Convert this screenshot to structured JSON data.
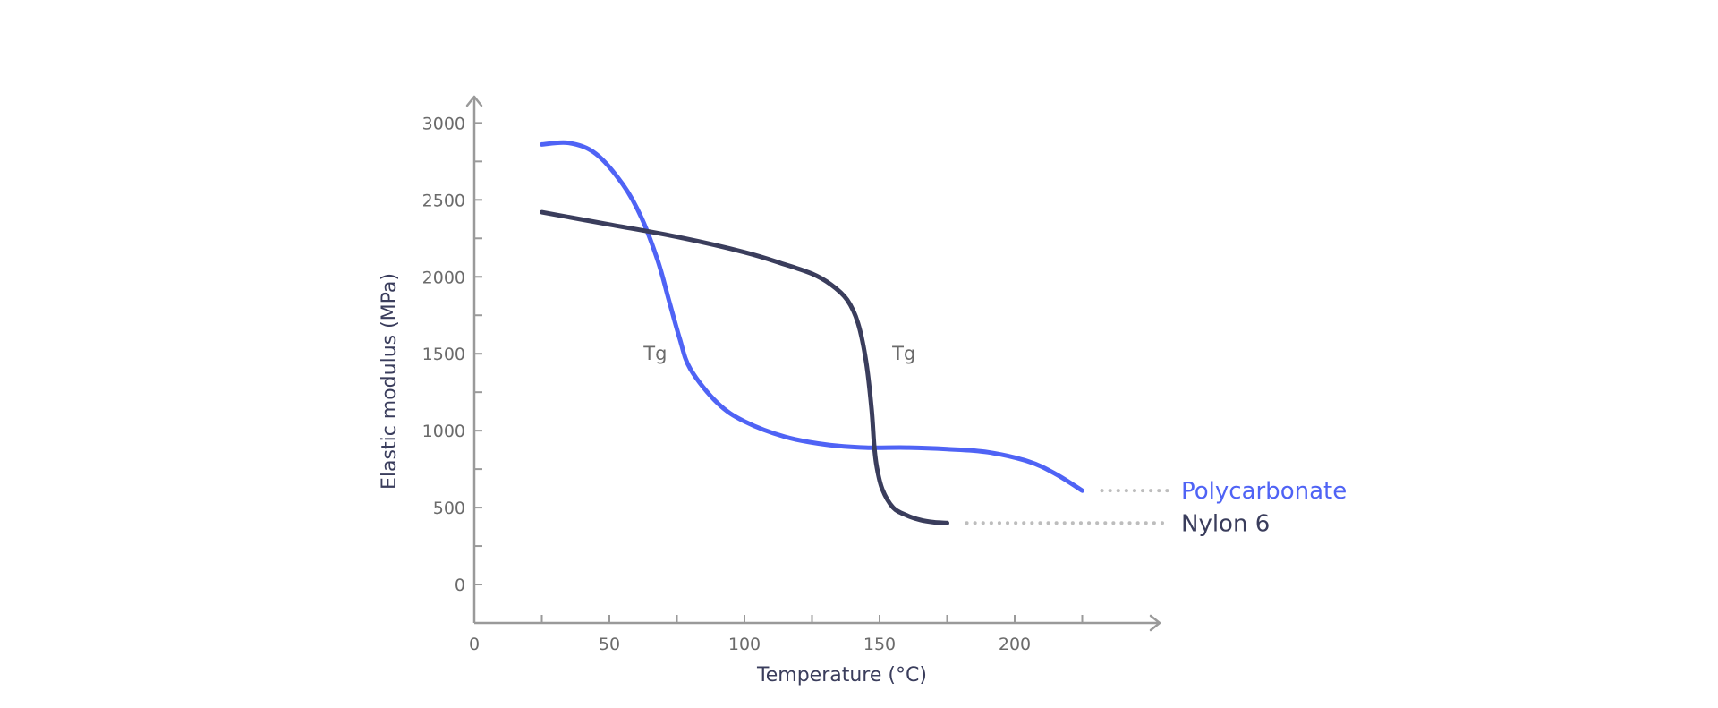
{
  "chart_data": {
    "type": "line",
    "title": "",
    "xlabel": "Temperature (°C)",
    "ylabel": "Elastic modulus (MPa)",
    "xlim": [
      0,
      250
    ],
    "ylim": [
      -250,
      3200
    ],
    "x_ticks_labeled": [
      0,
      50,
      100,
      150,
      200
    ],
    "x_ticks_minor": [
      25,
      50,
      75,
      100,
      125,
      150,
      175,
      200,
      225
    ],
    "x_tick_labels": [
      "0",
      "50",
      "100",
      "150",
      "200"
    ],
    "y_ticks_labeled": [
      0,
      500,
      1000,
      1500,
      2000,
      2500,
      3000
    ],
    "y_ticks_minor": [
      -250,
      250,
      750,
      1250,
      1750,
      2250,
      2750
    ],
    "y_tick_labels": [
      "0",
      "500",
      "1000",
      "1500",
      "2000",
      "2500",
      "3000"
    ],
    "grid": false,
    "legend": "inline-right",
    "series": [
      {
        "name": "Polycarbonate",
        "color": "#4f63f5",
        "x": [
          25,
          35,
          45,
          55,
          62,
          68,
          72,
          76,
          80,
          90,
          100,
          115,
          130,
          145,
          160,
          175,
          190,
          205,
          215,
          225
        ],
        "y": [
          2860,
          2870,
          2800,
          2600,
          2380,
          2100,
          1850,
          1600,
          1400,
          1180,
          1060,
          960,
          910,
          890,
          890,
          880,
          860,
          800,
          720,
          610
        ]
      },
      {
        "name": "Nylon 6",
        "color": "#3a3d5c",
        "x": [
          25,
          50,
          75,
          100,
          115,
          125,
          132,
          138,
          142,
          145,
          147,
          148,
          149,
          151,
          155,
          160,
          165,
          170,
          175
        ],
        "y": [
          2420,
          2340,
          2260,
          2160,
          2080,
          2020,
          1950,
          1850,
          1700,
          1450,
          1150,
          900,
          760,
          620,
          500,
          450,
          420,
          405,
          400
        ]
      }
    ],
    "annotations": [
      {
        "text": "Tg",
        "x": 67,
        "y": 1500
      },
      {
        "text": "Tg",
        "x": 159,
        "y": 1500
      }
    ]
  }
}
